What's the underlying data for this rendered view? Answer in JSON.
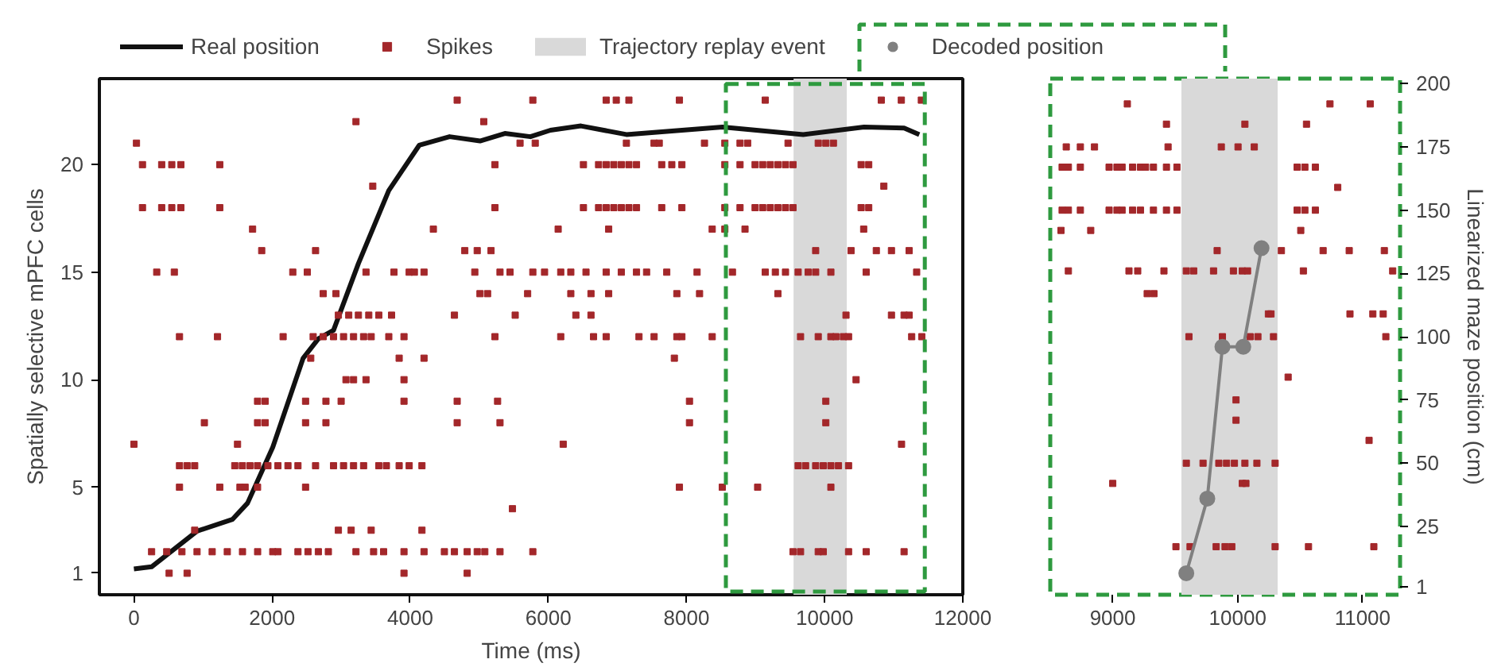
{
  "chart_data": [
    {
      "type": "scatter",
      "xlabel": "Time (ms)",
      "ylabel": "Spatially selective mPFC cells",
      "xlim": [
        -500,
        12000
      ],
      "ylim": [
        0,
        24
      ],
      "xticks": [
        0,
        2000,
        4000,
        6000,
        8000,
        10000,
        12000
      ],
      "yticks": [
        1,
        5,
        10,
        15,
        20
      ],
      "grid": false,
      "legend": "top",
      "series": [
        {
          "name": "Real position",
          "type": "line",
          "color": "#111111",
          "x": [
            0,
            256,
            914,
            1425,
            1645,
            2010,
            2450,
            2670,
            2890,
            3250,
            3690,
            4130,
            4570,
            5010,
            5370,
            5740,
            6030,
            6472,
            7130,
            8520,
            9690,
            10570,
            11150,
            11370
          ],
          "values": [
            1.2,
            1.3,
            2.96,
            3.5,
            4.26,
            6.86,
            11.0,
            11.9,
            12.3,
            15.4,
            18.8,
            20.9,
            21.3,
            21.1,
            21.45,
            21.3,
            21.6,
            21.8,
            21.4,
            21.75,
            21.4,
            21.75,
            21.7,
            21.4
          ]
        },
        {
          "name": "Spikes",
          "type": "scatter",
          "marker": "square",
          "color": "#a3272a",
          "x": [
            4680,
            5775,
            6837,
            6983,
            7166,
            7897,
            9140,
            10820,
            11110,
            11400,
            3215,
            5065,
            37,
            5590,
            5810,
            7130,
            7530,
            7605,
            8260,
            8555,
            8775,
            8885,
            9470,
            9907,
            10017,
            10127,
            124,
            402,
            548,
            680,
            1243,
            5227,
            6508,
            6727,
            6837,
            6947,
            7056,
            7166,
            7276,
            7641,
            7787,
            7933,
            8555,
            8775,
            8993,
            9103,
            9213,
            9323,
            9433,
            9542,
            10528,
            10638,
            3458,
            10857,
            124,
            402,
            548,
            680,
            1243,
            5227,
            6508,
            6727,
            6837,
            6947,
            7056,
            7166,
            7276,
            7641,
            7933,
            8555,
            8775,
            8993,
            9103,
            9213,
            9323,
            9433,
            9542,
            10528,
            10638,
            1718,
            4335,
            6142,
            6873,
            8372,
            8555,
            8847,
            10565,
            1850,
            2630,
            4790,
            4970,
            5170,
            9870,
            10382,
            10748,
            10967,
            11223,
            330,
            585,
            2300,
            2510,
            3360,
            3765,
            3985,
            4060,
            4200,
            4935,
            5300,
            5445,
            5775,
            5945,
            6179,
            6325,
            6545,
            6837,
            7056,
            7276,
            7422,
            7714,
            8153,
            8665,
            9140,
            9286,
            9433,
            9616,
            9761,
            9870,
            10090,
            10601,
            11332,
            2740,
            2925,
            5010,
            5120,
            5700,
            6325,
            6617,
            6873,
            7860,
            8189,
            9323,
            2960,
            3110,
            3250,
            3400,
            3545,
            3730,
            4640,
            5520,
            6398,
            6617,
            10309,
            10967,
            11150,
            11223,
            660,
            1210,
            2160,
            2595,
            2740,
            2890,
            3035,
            3180,
            3325,
            3435,
            3690,
            3910,
            5227,
            6179,
            6654,
            6837,
            7312,
            7531,
            7860,
            7933,
            8372,
            9651,
            9907,
            10090,
            10163,
            10272,
            10346,
            11260,
            11406,
            2560,
            3840,
            4200,
            7824,
            3070,
            3180,
            3360,
            3910,
            10455,
            1790,
            1900,
            2485,
            2780,
            3000,
            3910,
            4680,
            5265,
            8043,
            10017,
            1020,
            1790,
            1900,
            2485,
            2780,
            4680,
            5300,
            8043,
            10017,
            0,
            1500,
            6215,
            11113,
            660,
            770,
            880,
            1460,
            1570,
            1680,
            1790,
            1940,
            2085,
            2230,
            2375,
            2630,
            2890,
            3035,
            3180,
            3325,
            3545,
            3655,
            3840,
            3985,
            4170,
            9616,
            9724,
            9870,
            9980,
            10090,
            10200,
            10346,
            660,
            1243,
            1535,
            1610,
            1790,
            2485,
            7897,
            8518,
            9030,
            10090,
            5480,
            880,
            2960,
            3145,
            3435,
            4170,
            256,
            475,
            695,
            914,
            1133,
            1352,
            1572,
            1791,
            2010,
            2085,
            2375,
            2520,
            2670,
            2815,
            3215,
            3470,
            3615,
            3910,
            4200,
            4495,
            4640,
            4825,
            4970,
            5080,
            5300,
            5775,
            9542,
            9651,
            9907,
            9980,
            10346,
            10601,
            11150,
            510,
            770,
            3910,
            4825
          ],
          "values": [
            23,
            23,
            23,
            23,
            23,
            23,
            23,
            23,
            23,
            23,
            22,
            22,
            21,
            21,
            21,
            21,
            21,
            21,
            21,
            21,
            21,
            21,
            21,
            21,
            21,
            21,
            20,
            20,
            20,
            20,
            20,
            20,
            20,
            20,
            20,
            20,
            20,
            20,
            20,
            20,
            20,
            20,
            20,
            20,
            20,
            20,
            20,
            20,
            20,
            20,
            20,
            20,
            19,
            19,
            18,
            18,
            18,
            18,
            18,
            18,
            18,
            18,
            18,
            18,
            18,
            18,
            18,
            18,
            18,
            18,
            18,
            18,
            18,
            18,
            18,
            18,
            18,
            18,
            18,
            17,
            17,
            17,
            17,
            17,
            17,
            17,
            17,
            16,
            16,
            16,
            16,
            16,
            16,
            16,
            16,
            16,
            16,
            15,
            15,
            15,
            15,
            15,
            15,
            15,
            15,
            15,
            15,
            15,
            15,
            15,
            15,
            15,
            15,
            15,
            15,
            15,
            15,
            15,
            15,
            15,
            15,
            15,
            15,
            15,
            15,
            15,
            15,
            15,
            15,
            15,
            14,
            14,
            14,
            14,
            14,
            14,
            14,
            14,
            14,
            14,
            14,
            13,
            13,
            13,
            13,
            13,
            13,
            13,
            13,
            13,
            13,
            13,
            13,
            13,
            13,
            12,
            12,
            12,
            12,
            12,
            12,
            12,
            12,
            12,
            12,
            12,
            12,
            12,
            12,
            12,
            12,
            12,
            12,
            12,
            12,
            12,
            12,
            12,
            12,
            12,
            12,
            12,
            12,
            12,
            11,
            11,
            11,
            11,
            10,
            10,
            10,
            10,
            10,
            9,
            9,
            9,
            9,
            9,
            9,
            9,
            9,
            9,
            9,
            8,
            8,
            8,
            8,
            8,
            8,
            8,
            8,
            8,
            7,
            7,
            7,
            7,
            6,
            6,
            6,
            6,
            6,
            6,
            6,
            6,
            6,
            6,
            6,
            6,
            6,
            6,
            6,
            6,
            6,
            6,
            6,
            6,
            6,
            6,
            6,
            6,
            6,
            6,
            6,
            6,
            5,
            5,
            5,
            5,
            5,
            5,
            5,
            5,
            5,
            5,
            4,
            3,
            3,
            3,
            3,
            3,
            2,
            2,
            2,
            2,
            2,
            2,
            2,
            2,
            2,
            2,
            2,
            2,
            2,
            2,
            2,
            2,
            2,
            2,
            2,
            2,
            2,
            2,
            2,
            2,
            2,
            2,
            2,
            2,
            2,
            2,
            2,
            2,
            2,
            1,
            1,
            1,
            1
          ]
        }
      ],
      "bands": [
        {
          "axis": "x",
          "from": 9550,
          "to": 10320,
          "label": "Trajectory replay event",
          "color": "#d9d9d9"
        }
      ]
    },
    {
      "type": "scatter",
      "y2label": "Linearized maze position (cm)",
      "xlim": [
        8500,
        11300
      ],
      "y2lim": [
        -2,
        202
      ],
      "xticks": [
        9000,
        10000,
        11000
      ],
      "y2ticks": [
        1,
        25,
        50,
        75,
        100,
        125,
        150,
        175,
        200
      ],
      "grid": false,
      "series": [
        {
          "type": "scatter",
          "marker": "square",
          "color": "#a3272a",
          "axis": "y2",
          "x": [
            9117,
            10739,
            11061,
            9430,
            10058,
            10551,
            8628,
            8741,
            8854,
            9443,
            9869,
            10003,
            10133,
            8595,
            8645,
            8741,
            8971,
            9034,
            9075,
            9159,
            9222,
            9263,
            9326,
            9430,
            9514,
            10476,
            10538,
            10622,
            10801,
            8595,
            8645,
            8741,
            8971,
            9034,
            9075,
            9159,
            9222,
            9326,
            9430,
            9514,
            10476,
            10538,
            10622,
            8586,
            8824,
            10505,
            9836,
            10350,
            10684,
            10893,
            11174,
            8645,
            9130,
            9200,
            9410,
            9589,
            9648,
            9807,
            9966,
            10037,
            10079,
            10526,
            11241,
            9276,
            9330,
            10246,
            10267,
            10899,
            11082,
            11165,
            9610,
            9878,
            10100,
            10162,
            10287,
            11186,
            10404,
            9987,
            9987,
            11052,
            9589,
            9723,
            9849,
            9911,
            9974,
            10058,
            10154,
            10300,
            9000,
            10037,
            10066,
            9506,
            9619,
            9828,
            9899,
            9953,
            10300,
            10567,
            11090
          ],
          "values": [
            192,
            192,
            192,
            184,
            184,
            184,
            175,
            175,
            175,
            175,
            175,
            175,
            175,
            167,
            167,
            167,
            167,
            167,
            167,
            167,
            167,
            167,
            167,
            167,
            167,
            167,
            167,
            167,
            159,
            150,
            150,
            150,
            150,
            150,
            150,
            150,
            150,
            150,
            150,
            150,
            150,
            150,
            150,
            142,
            142,
            142,
            134,
            134,
            134,
            134,
            134,
            126,
            126,
            126,
            126,
            126,
            126,
            126,
            126,
            126,
            126,
            126,
            126,
            117,
            117,
            109,
            109,
            109,
            109,
            109,
            100,
            100,
            100,
            100,
            100,
            100,
            84,
            75,
            67,
            59,
            50,
            50,
            50,
            50,
            50,
            50,
            50,
            50,
            42,
            42,
            42,
            17,
            17,
            17,
            17,
            17,
            17,
            17,
            17
          ]
        },
        {
          "name": "Decoded position",
          "type": "line",
          "marker": "circle",
          "color": "#808080",
          "axis": "y2",
          "x": [
            9589,
            9757,
            9878,
            10045,
            10191
          ],
          "values": [
            6.5,
            36,
            96,
            96,
            135
          ]
        }
      ],
      "bands": [
        {
          "axis": "x",
          "from": 9550,
          "to": 10320,
          "color": "#d9d9d9"
        }
      ]
    }
  ]
}
